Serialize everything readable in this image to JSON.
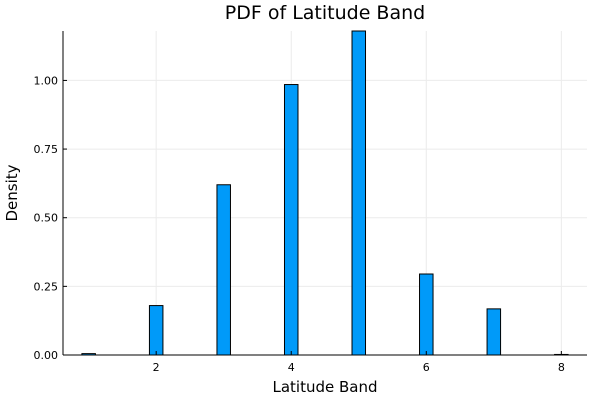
{
  "chart_data": {
    "type": "bar",
    "title": "PDF of Latitude Band",
    "xlabel": "Latitude Band",
    "ylabel": "Density",
    "xlim": [
      0.62,
      8.38
    ],
    "ylim": [
      0,
      1.18
    ],
    "xticks": [
      2,
      4,
      6,
      8
    ],
    "xtick_labels": [
      "2",
      "4",
      "6",
      "8"
    ],
    "yticks": [
      0,
      0.25,
      0.5,
      0.75,
      1.0
    ],
    "ytick_labels": [
      "0.00",
      "0.25",
      "0.50",
      "0.75",
      "1.00"
    ],
    "bar_width": 0.2,
    "grid": true,
    "legend": "none",
    "color": "#009AF9",
    "series": [
      {
        "name": "Latitude Band",
        "x": [
          1,
          2,
          3,
          4,
          5,
          6,
          7,
          8
        ],
        "values": [
          0.005,
          0.18,
          0.62,
          0.985,
          1.18,
          0.295,
          0.168,
          0.002
        ]
      }
    ]
  }
}
